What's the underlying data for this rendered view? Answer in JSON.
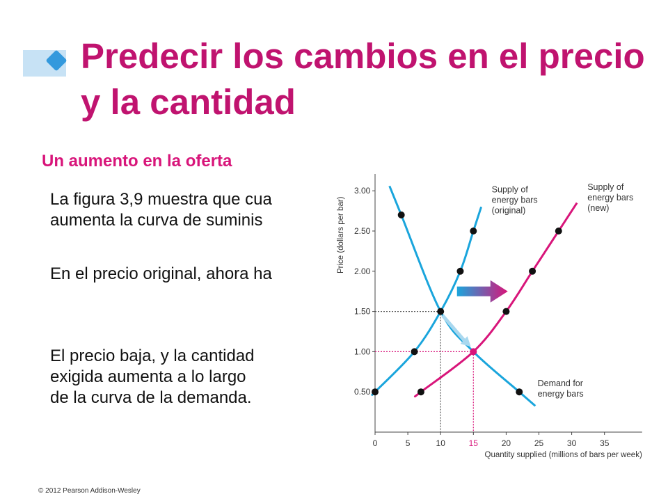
{
  "slide": {
    "title": "Predecir los cambios en el precio y la cantidad",
    "subtitle": "Un aumento en la oferta",
    "paragraphs": [
      "La figura 3,9 muestra que cua\naumenta la curva de suminis",
      "En el precio original, ahora ha",
      "El precio baja, y la cantidad\nexigida aumenta a lo largo\nde la curva de la demanda."
    ],
    "footer": "© 2012 Pearson Addison-Wesley",
    "colors": {
      "title": "#c0136f",
      "accent_blue": "#1aa5dc",
      "accent_magenta": "#d8157a",
      "bullet_bar": "#c7e2f5",
      "bullet_diamond": "#3399dd"
    }
  },
  "chart_data": {
    "type": "line",
    "xlabel": "Quantity supplied (millions of bars per week)",
    "ylabel": "Price (dollars per bar)",
    "xlim": [
      0,
      40
    ],
    "ylim": [
      0,
      3.25
    ],
    "x_ticks": [
      "0",
      "5",
      "10",
      "15",
      "20",
      "25",
      "30",
      "35"
    ],
    "y_ticks": [
      "0.50",
      "1.00",
      "1.50",
      "2.00",
      "2.50",
      "3.00"
    ],
    "series": [
      {
        "name": "Supply of energy bars (original)",
        "color": "#1aa5dc",
        "x": [
          0,
          6,
          10,
          13,
          15
        ],
        "y": [
          0.5,
          1.0,
          1.5,
          2.0,
          2.5
        ]
      },
      {
        "name": "Supply of energy bars (new)",
        "color": "#d8157a",
        "x": [
          7,
          15,
          20,
          24,
          28
        ],
        "y": [
          0.5,
          1.0,
          1.5,
          2.0,
          2.5
        ]
      },
      {
        "name": "Demand for energy bars",
        "color": "#1aa5dc",
        "x": [
          4,
          10,
          15,
          22
        ],
        "y": [
          2.7,
          1.5,
          1.0,
          0.5
        ]
      }
    ],
    "equilibria": [
      {
        "x": 10,
        "y": 1.5,
        "color": "#555555"
      },
      {
        "x": 15,
        "y": 1.0,
        "color": "#d8157a"
      }
    ],
    "curve_labels": {
      "supply_original": [
        "Supply of",
        "energy bars",
        "(original)"
      ],
      "supply_new": [
        "Supply of",
        "energy bars",
        "(new)"
      ],
      "demand": [
        "Demand for",
        "energy bars"
      ]
    },
    "grid": false,
    "legend": "none"
  }
}
